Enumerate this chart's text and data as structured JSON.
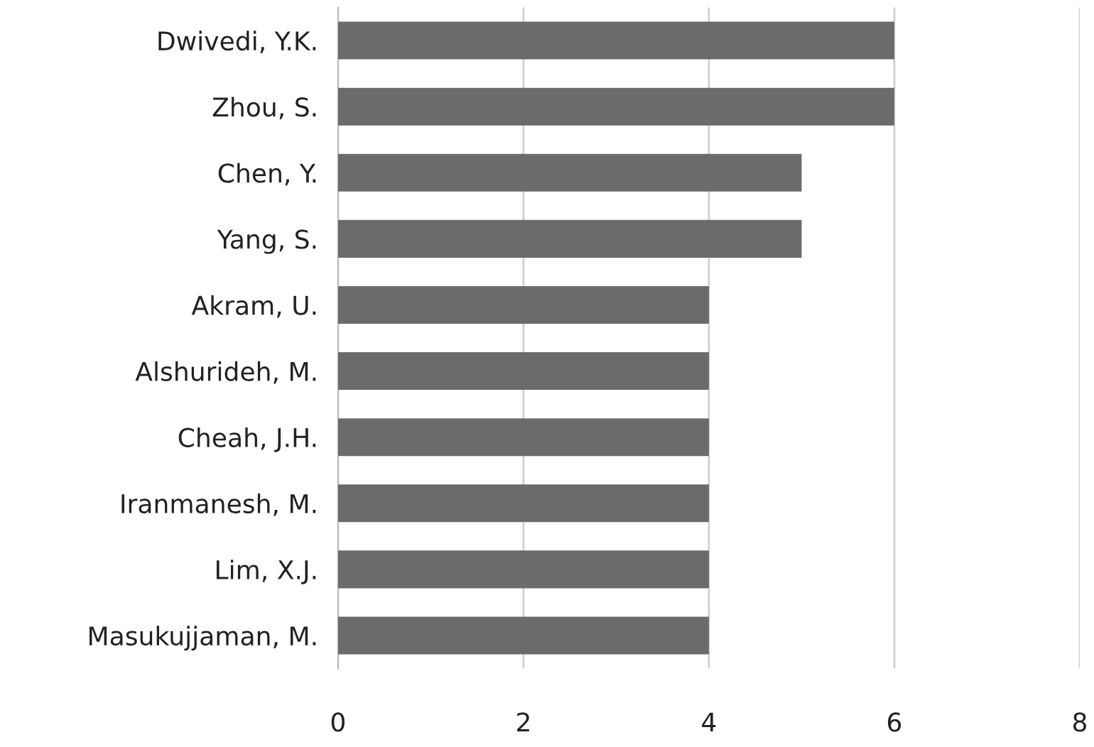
{
  "chart_data": {
    "type": "bar",
    "orientation": "horizontal",
    "categories": [
      "Dwivedi, Y.K.",
      "Zhou, S.",
      "Chen, Y.",
      "Yang, S.",
      "Akram, U.",
      "Alshurideh, M.",
      "Cheah, J.H.",
      "Iranmanesh, M.",
      "Lim, X.J.",
      "Masukujjaman, M."
    ],
    "values": [
      6,
      6,
      5,
      5,
      4,
      4,
      4,
      4,
      4,
      4
    ],
    "color": "#6b6b6b",
    "xlim": [
      0,
      8
    ],
    "xticks": [
      0,
      2,
      4,
      6,
      8
    ],
    "grid": "x",
    "legend": false
  }
}
